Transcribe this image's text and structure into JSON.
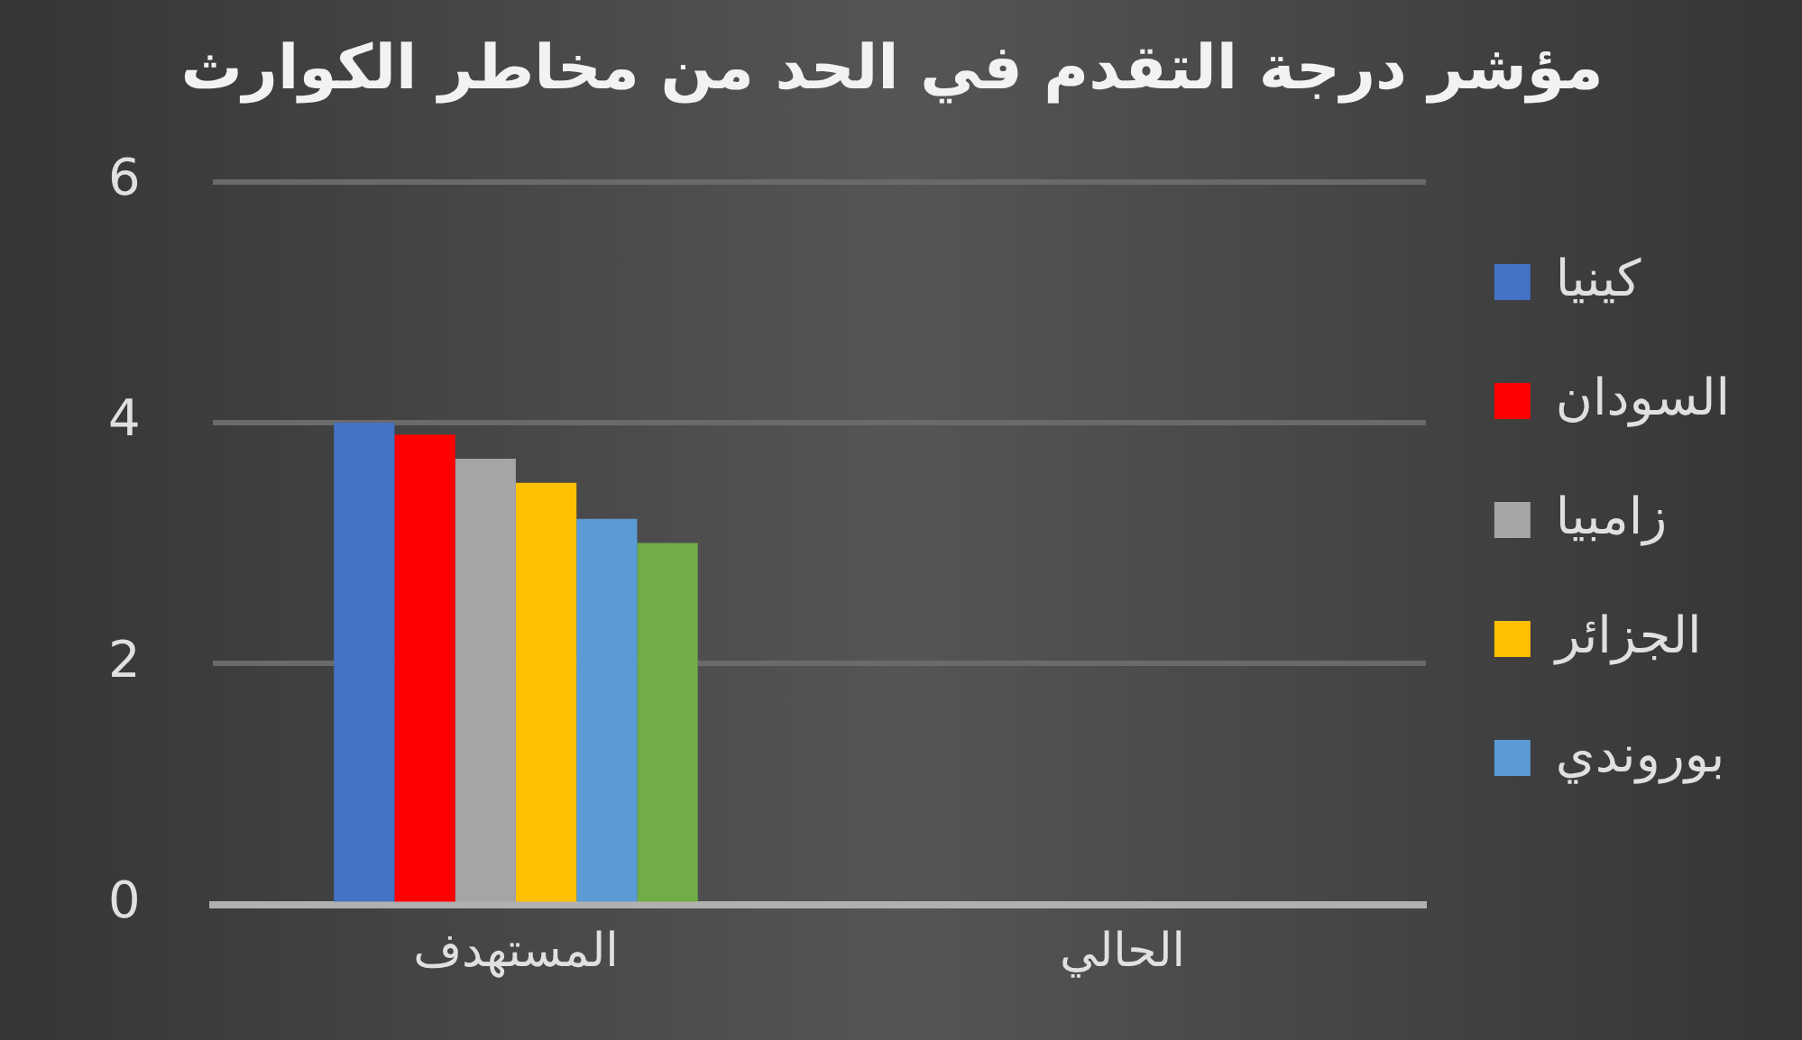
{
  "chart_data": {
    "type": "bar",
    "title": "مؤشر درجة التقدم في الحد من مخاطر الكوارث",
    "categories": [
      "المستهدف",
      "الحالي"
    ],
    "series": [
      {
        "name": "كينيا",
        "color": "#4472c4",
        "values": [
          4.0,
          null
        ]
      },
      {
        "name": "السودان",
        "color": "#ff0000",
        "values": [
          3.9,
          null
        ]
      },
      {
        "name": "زامبيا",
        "color": "#a5a5a5",
        "values": [
          3.7,
          null
        ]
      },
      {
        "name": "الجزائر",
        "color": "#ffc000",
        "values": [
          3.5,
          null
        ]
      },
      {
        "name": "بوروندي",
        "color": "#5b9bd5",
        "values": [
          3.2,
          null
        ]
      },
      {
        "color": "#70ad47",
        "values": [
          3.0,
          null
        ]
      }
    ],
    "ylim": [
      0,
      6
    ],
    "yticks": [
      0,
      2,
      4,
      6
    ],
    "grid": "y",
    "legend": "right"
  }
}
